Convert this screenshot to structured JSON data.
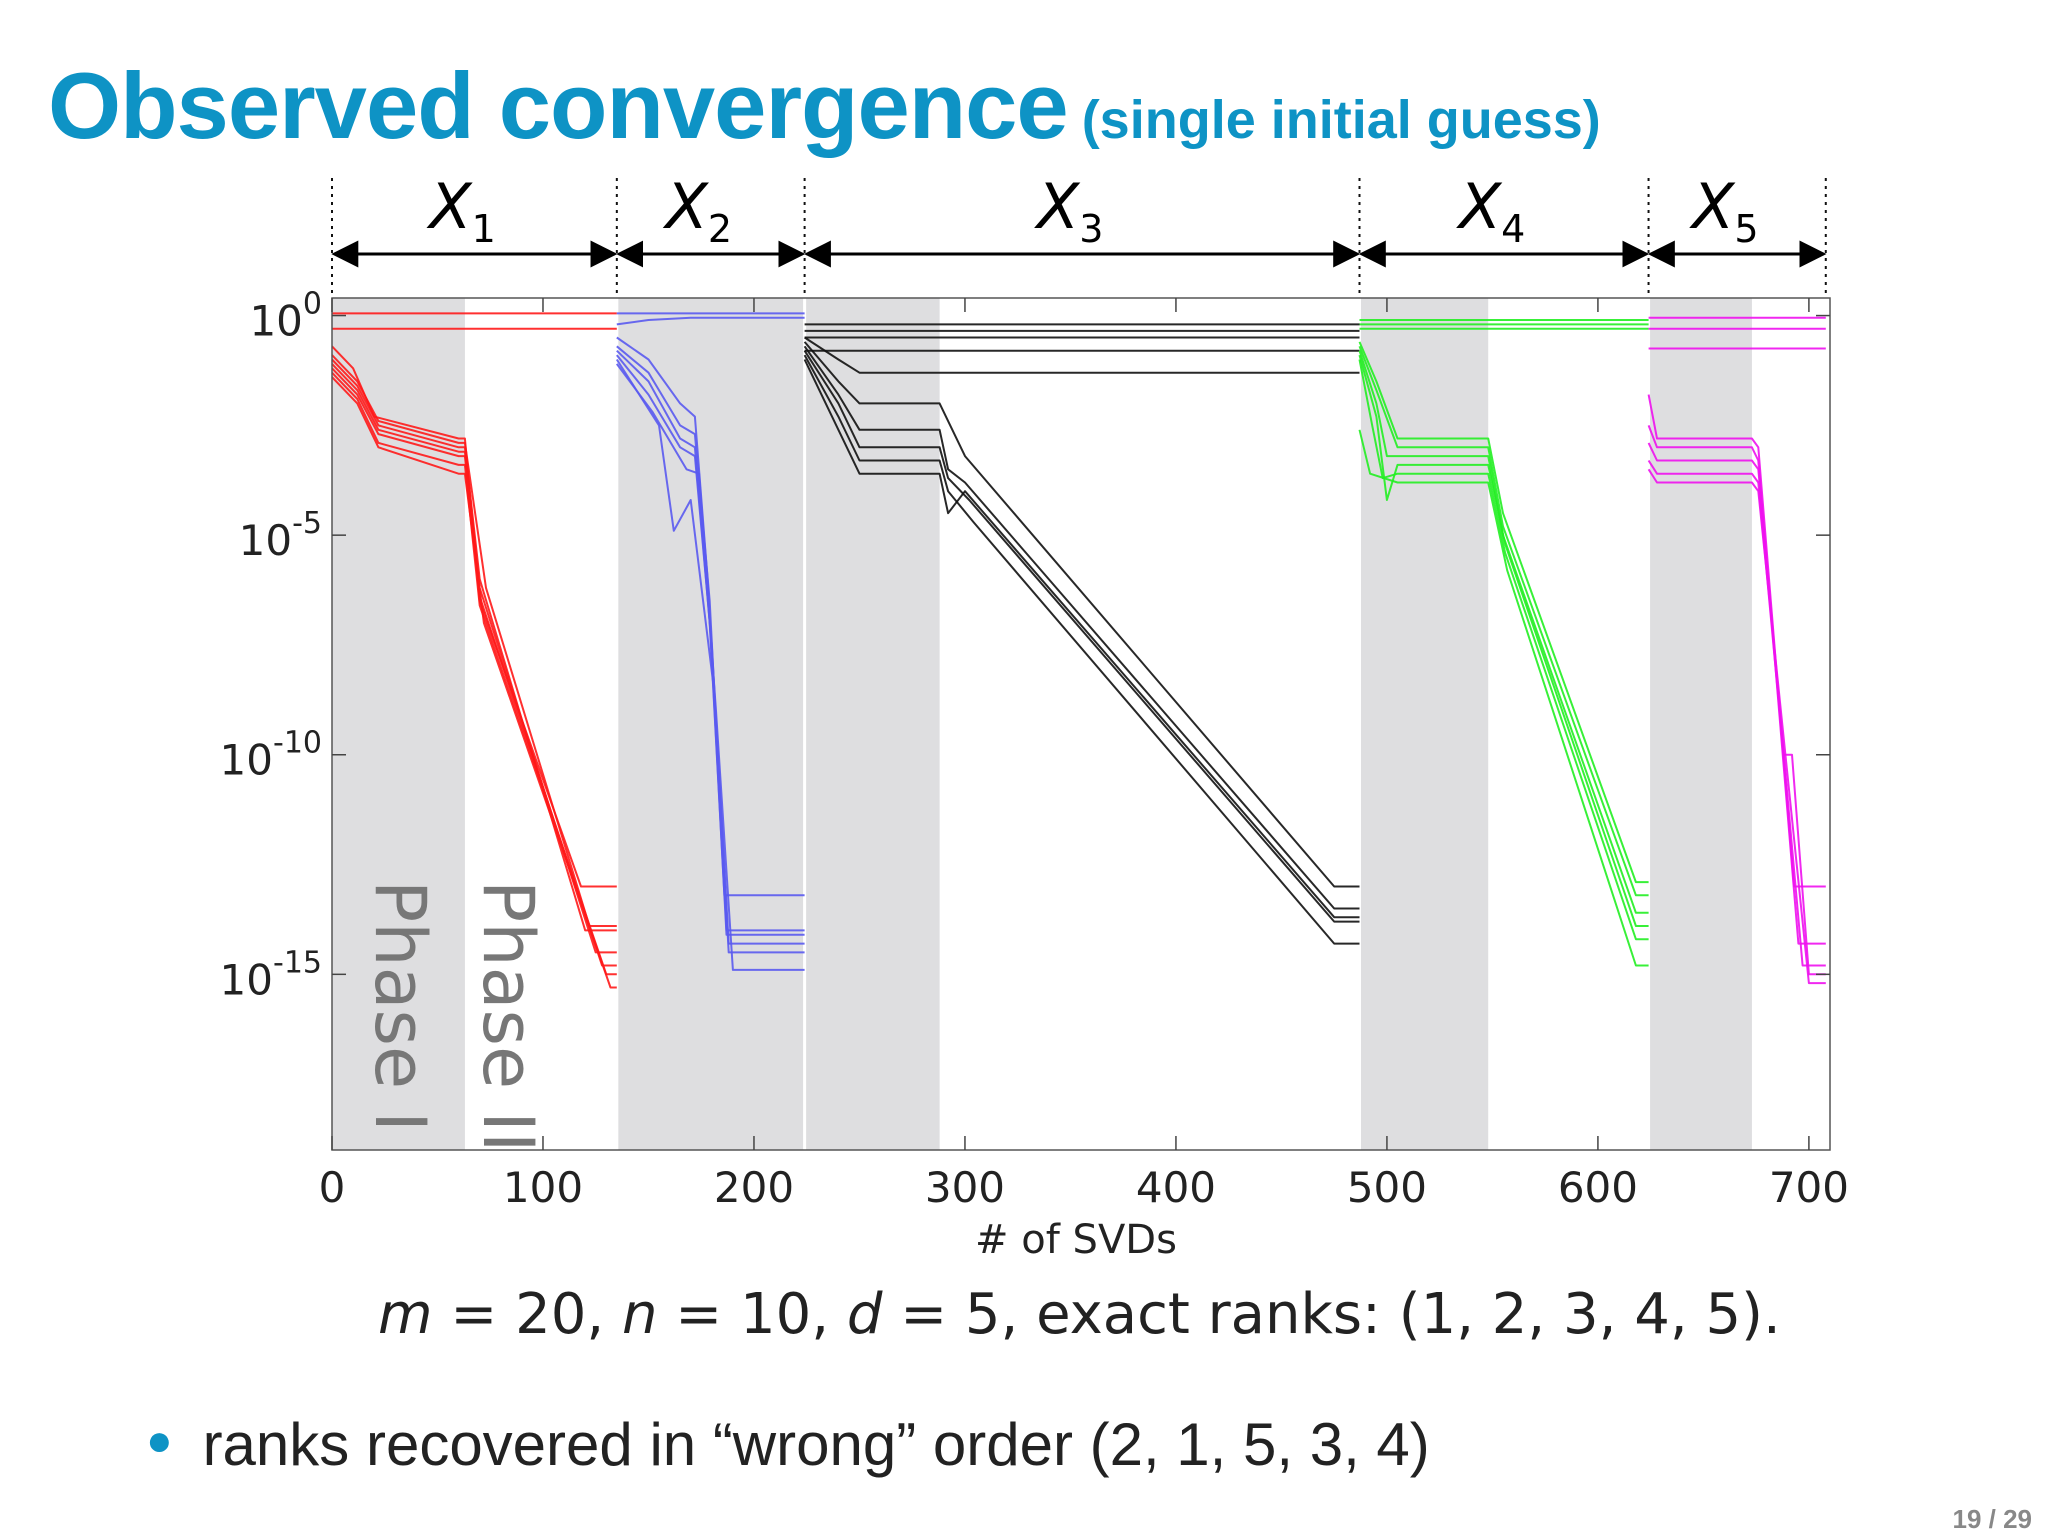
{
  "title": {
    "main": "Observed convergence",
    "sub": "(single initial guess)"
  },
  "caption": {
    "m": "m",
    "eq1": " = 20, ",
    "n": "n",
    "eq2": " = 10, ",
    "d": "d",
    "eq3": " = 5, exact ranks: (1, 2, 3, 4, 5)."
  },
  "bullet": {
    "text": "ranks recovered in “wrong” order (2, 1, 5, 3, 4)"
  },
  "page_number": "19 / 29",
  "chart_data": {
    "type": "line",
    "xlabel": "# of SVDs",
    "ylabel": "",
    "xlim": [
      0,
      710
    ],
    "ylim": [
      -19,
      0.4
    ],
    "ylog": true,
    "grid": false,
    "x_ticks": [
      0,
      100,
      200,
      300,
      400,
      500,
      600,
      700
    ],
    "y_ticks": [
      {
        "value": 0,
        "base": "10",
        "exp": "0"
      },
      {
        "value": -5,
        "base": "10",
        "exp": "-5"
      },
      {
        "value": -10,
        "base": "10",
        "exp": "-10"
      },
      {
        "value": -15,
        "base": "10",
        "exp": "-15"
      }
    ],
    "phase_labels": [
      "Phase I",
      "Phase II"
    ],
    "segments": [
      {
        "label": "X",
        "sub": "1",
        "x": [
          0,
          135
        ],
        "phase1": [
          0,
          63
        ],
        "color": "#ff1a1a"
      },
      {
        "label": "X",
        "sub": "2",
        "x": [
          135,
          224
        ],
        "phase1": [
          135,
          224
        ],
        "color": "#5a5af0"
      },
      {
        "label": "X",
        "sub": "3",
        "x": [
          224,
          487
        ],
        "phase1": [
          224,
          288
        ],
        "color": "#111111"
      },
      {
        "label": "X",
        "sub": "4",
        "x": [
          487,
          624
        ],
        "phase1": [
          487,
          548
        ],
        "color": "#22ee22"
      },
      {
        "label": "X",
        "sub": "5",
        "x": [
          624,
          708
        ],
        "phase1": [
          624,
          673
        ],
        "color": "#ee11ee"
      }
    ],
    "series": [
      {
        "segment": 1,
        "points": [
          [
            0,
            0.05
          ],
          [
            135,
            0.05
          ]
        ]
      },
      {
        "segment": 1,
        "points": [
          [
            0,
            -0.3
          ],
          [
            135,
            -0.3
          ]
        ]
      },
      {
        "segment": 1,
        "points": [
          [
            0,
            -0.7
          ],
          [
            10,
            -1.2
          ],
          [
            20,
            -2.3
          ],
          [
            60,
            -2.8
          ],
          [
            63,
            -2.8
          ],
          [
            70,
            -6.5
          ],
          [
            118,
            -13.0
          ],
          [
            135,
            -13.0
          ]
        ]
      },
      {
        "segment": 1,
        "points": [
          [
            0,
            -0.9
          ],
          [
            12,
            -1.5
          ],
          [
            22,
            -2.4
          ],
          [
            60,
            -2.9
          ],
          [
            63,
            -2.9
          ],
          [
            73,
            -6.2
          ],
          [
            122,
            -13.9
          ],
          [
            135,
            -13.9
          ]
        ]
      },
      {
        "segment": 1,
        "points": [
          [
            0,
            -1.0
          ],
          [
            12,
            -1.6
          ],
          [
            22,
            -2.5
          ],
          [
            60,
            -3.0
          ],
          [
            63,
            -3.0
          ],
          [
            70,
            -6.0
          ],
          [
            120,
            -14.0
          ],
          [
            135,
            -14.0
          ]
        ]
      },
      {
        "segment": 1,
        "points": [
          [
            0,
            -1.1
          ],
          [
            12,
            -1.7
          ],
          [
            22,
            -2.6
          ],
          [
            60,
            -3.1
          ],
          [
            63,
            -3.1
          ],
          [
            70,
            -6.2
          ],
          [
            125,
            -14.5
          ],
          [
            135,
            -14.5
          ]
        ]
      },
      {
        "segment": 1,
        "points": [
          [
            0,
            -1.2
          ],
          [
            12,
            -1.8
          ],
          [
            22,
            -2.7
          ],
          [
            60,
            -3.2
          ],
          [
            63,
            -3.2
          ],
          [
            70,
            -6.4
          ],
          [
            128,
            -14.8
          ],
          [
            135,
            -14.8
          ]
        ]
      },
      {
        "segment": 1,
        "points": [
          [
            0,
            -1.3
          ],
          [
            12,
            -1.9
          ],
          [
            22,
            -2.9
          ],
          [
            60,
            -3.4
          ],
          [
            63,
            -3.4
          ],
          [
            70,
            -6.6
          ],
          [
            130,
            -15.0
          ],
          [
            135,
            -15.0
          ]
        ]
      },
      {
        "segment": 1,
        "points": [
          [
            0,
            -1.4
          ],
          [
            12,
            -2.0
          ],
          [
            22,
            -3.0
          ],
          [
            60,
            -3.6
          ],
          [
            63,
            -3.6
          ],
          [
            72,
            -7.0
          ],
          [
            132,
            -15.3
          ],
          [
            135,
            -15.3
          ]
        ]
      },
      {
        "segment": 2,
        "points": [
          [
            135,
            0.05
          ],
          [
            224,
            0.05
          ]
        ]
      },
      {
        "segment": 2,
        "points": [
          [
            135,
            -0.2
          ],
          [
            150,
            -0.1
          ],
          [
            170,
            -0.05
          ],
          [
            224,
            -0.05
          ]
        ]
      },
      {
        "segment": 2,
        "points": [
          [
            135,
            -0.5
          ],
          [
            150,
            -1.0
          ],
          [
            165,
            -2.0
          ],
          [
            172,
            -2.3
          ],
          [
            178,
            -6.0
          ],
          [
            186,
            -13.2
          ],
          [
            224,
            -13.2
          ]
        ]
      },
      {
        "segment": 2,
        "points": [
          [
            135,
            -0.7
          ],
          [
            150,
            -1.3
          ],
          [
            165,
            -2.5
          ],
          [
            172,
            -2.7
          ],
          [
            179,
            -6.5
          ],
          [
            187,
            -14.0
          ],
          [
            224,
            -14.0
          ]
        ]
      },
      {
        "segment": 2,
        "points": [
          [
            135,
            -0.8
          ],
          [
            150,
            -1.5
          ],
          [
            165,
            -2.8
          ],
          [
            172,
            -3.0
          ],
          [
            179,
            -7.0
          ],
          [
            187,
            -14.1
          ],
          [
            224,
            -14.1
          ]
        ]
      },
      {
        "segment": 2,
        "points": [
          [
            135,
            -0.9
          ],
          [
            150,
            -1.8
          ],
          [
            165,
            -3.0
          ],
          [
            172,
            -3.2
          ],
          [
            180,
            -7.5
          ],
          [
            188,
            -14.3
          ],
          [
            224,
            -14.3
          ]
        ]
      },
      {
        "segment": 2,
        "points": [
          [
            135,
            -1.0
          ],
          [
            155,
            -2.5
          ],
          [
            162,
            -4.9
          ],
          [
            170,
            -4.2
          ],
          [
            181,
            -8.5
          ],
          [
            188,
            -14.5
          ],
          [
            224,
            -14.5
          ]
        ]
      },
      {
        "segment": 2,
        "points": [
          [
            135,
            -1.1
          ],
          [
            152,
            -2.2
          ],
          [
            168,
            -3.5
          ],
          [
            174,
            -3.6
          ],
          [
            182,
            -9.0
          ],
          [
            190,
            -14.9
          ],
          [
            224,
            -14.9
          ]
        ]
      },
      {
        "segment": 3,
        "points": [
          [
            224,
            -0.2
          ],
          [
            487,
            -0.2
          ]
        ]
      },
      {
        "segment": 3,
        "points": [
          [
            224,
            -0.35
          ],
          [
            487,
            -0.35
          ]
        ]
      },
      {
        "segment": 3,
        "points": [
          [
            224,
            -0.5
          ],
          [
            487,
            -0.5
          ]
        ]
      },
      {
        "segment": 3,
        "points": [
          [
            224,
            -0.8
          ],
          [
            487,
            -0.8
          ]
        ]
      },
      {
        "segment": 3,
        "points": [
          [
            224,
            -0.5
          ],
          [
            240,
            -1.0
          ],
          [
            250,
            -1.3
          ],
          [
            487,
            -1.3
          ]
        ]
      },
      {
        "segment": 3,
        "points": [
          [
            224,
            -0.6
          ],
          [
            240,
            -1.5
          ],
          [
            250,
            -2.0
          ],
          [
            288,
            -2.0
          ],
          [
            300,
            -3.2
          ],
          [
            475,
            -13.0
          ],
          [
            487,
            -13.0
          ]
        ]
      },
      {
        "segment": 3,
        "points": [
          [
            224,
            -0.7
          ],
          [
            240,
            -1.8
          ],
          [
            250,
            -2.6
          ],
          [
            288,
            -2.6
          ],
          [
            292,
            -3.5
          ],
          [
            300,
            -3.8
          ],
          [
            475,
            -13.5
          ],
          [
            487,
            -13.5
          ]
        ]
      },
      {
        "segment": 3,
        "points": [
          [
            224,
            -0.8
          ],
          [
            240,
            -2.0
          ],
          [
            250,
            -3.0
          ],
          [
            288,
            -3.0
          ],
          [
            292,
            -3.7
          ],
          [
            302,
            -4.2
          ],
          [
            475,
            -13.8
          ],
          [
            487,
            -13.8
          ]
        ]
      },
      {
        "segment": 3,
        "points": [
          [
            224,
            -0.9
          ],
          [
            240,
            -2.3
          ],
          [
            250,
            -3.3
          ],
          [
            288,
            -3.3
          ],
          [
            292,
            -4.0
          ],
          [
            304,
            -4.7
          ],
          [
            475,
            -14.3
          ],
          [
            487,
            -14.3
          ]
        ]
      },
      {
        "segment": 3,
        "points": [
          [
            224,
            -1.0
          ],
          [
            240,
            -2.6
          ],
          [
            250,
            -3.6
          ],
          [
            288,
            -3.6
          ],
          [
            292,
            -4.5
          ],
          [
            300,
            -4.0
          ],
          [
            475,
            -13.7
          ],
          [
            487,
            -13.7
          ]
        ]
      },
      {
        "segment": 4,
        "points": [
          [
            487,
            -0.1
          ],
          [
            624,
            -0.1
          ]
        ]
      },
      {
        "segment": 4,
        "points": [
          [
            487,
            -0.2
          ],
          [
            624,
            -0.2
          ]
        ]
      },
      {
        "segment": 4,
        "points": [
          [
            487,
            -0.3
          ],
          [
            624,
            -0.3
          ]
        ]
      },
      {
        "segment": 4,
        "points": [
          [
            487,
            -0.6
          ],
          [
            495,
            -1.5
          ],
          [
            505,
            -2.8
          ],
          [
            515,
            -2.8
          ],
          [
            548,
            -2.8
          ],
          [
            555,
            -4.5
          ],
          [
            618,
            -12.9
          ],
          [
            624,
            -12.9
          ]
        ]
      },
      {
        "segment": 4,
        "points": [
          [
            487,
            -0.7
          ],
          [
            495,
            -1.7
          ],
          [
            505,
            -3.0
          ],
          [
            548,
            -3.0
          ],
          [
            555,
            -4.8
          ],
          [
            618,
            -13.2
          ],
          [
            624,
            -13.2
          ]
        ]
      },
      {
        "segment": 4,
        "points": [
          [
            487,
            -0.8
          ],
          [
            495,
            -2.0
          ],
          [
            500,
            -3.2
          ],
          [
            505,
            -3.2
          ],
          [
            548,
            -3.2
          ],
          [
            555,
            -5.0
          ],
          [
            618,
            -13.6
          ],
          [
            624,
            -13.6
          ]
        ]
      },
      {
        "segment": 4,
        "points": [
          [
            487,
            -0.9
          ],
          [
            495,
            -2.3
          ],
          [
            500,
            -4.2
          ],
          [
            505,
            -3.4
          ],
          [
            548,
            -3.4
          ],
          [
            556,
            -5.2
          ],
          [
            618,
            -13.9
          ],
          [
            624,
            -13.9
          ]
        ]
      },
      {
        "segment": 4,
        "points": [
          [
            487,
            -1.0
          ],
          [
            493,
            -2.5
          ],
          [
            498,
            -3.7
          ],
          [
            505,
            -3.6
          ],
          [
            548,
            -3.6
          ],
          [
            556,
            -5.4
          ],
          [
            618,
            -14.2
          ],
          [
            624,
            -14.2
          ]
        ]
      },
      {
        "segment": 4,
        "points": [
          [
            487,
            -2.6
          ],
          [
            492,
            -3.6
          ],
          [
            505,
            -3.8
          ],
          [
            548,
            -3.8
          ],
          [
            557,
            -5.8
          ],
          [
            618,
            -14.8
          ],
          [
            624,
            -14.8
          ]
        ]
      },
      {
        "segment": 5,
        "points": [
          [
            624,
            -0.05
          ],
          [
            708,
            -0.05
          ]
        ]
      },
      {
        "segment": 5,
        "points": [
          [
            624,
            -0.3
          ],
          [
            708,
            -0.3
          ]
        ]
      },
      {
        "segment": 5,
        "points": [
          [
            624,
            -0.75
          ],
          [
            708,
            -0.75
          ]
        ]
      },
      {
        "segment": 5,
        "points": [
          [
            624,
            -1.8
          ],
          [
            628,
            -2.8
          ],
          [
            673,
            -2.8
          ],
          [
            676,
            -3.0
          ],
          [
            693,
            -13.0
          ],
          [
            708,
            -13.0
          ]
        ]
      },
      {
        "segment": 5,
        "points": [
          [
            624,
            -2.5
          ],
          [
            628,
            -3.0
          ],
          [
            673,
            -3.0
          ],
          [
            676,
            -3.3
          ],
          [
            695,
            -14.3
          ],
          [
            708,
            -14.3
          ]
        ]
      },
      {
        "segment": 5,
        "points": [
          [
            624,
            -2.9
          ],
          [
            628,
            -3.3
          ],
          [
            673,
            -3.3
          ],
          [
            676,
            -3.5
          ],
          [
            697,
            -14.8
          ],
          [
            708,
            -14.8
          ]
        ]
      },
      {
        "segment": 5,
        "points": [
          [
            624,
            -3.3
          ],
          [
            628,
            -3.6
          ],
          [
            673,
            -3.6
          ],
          [
            676,
            -3.8
          ],
          [
            688,
            -10.0
          ],
          [
            692,
            -10.0
          ],
          [
            700,
            -15.0
          ],
          [
            708,
            -15.0
          ]
        ]
      },
      {
        "segment": 5,
        "points": [
          [
            624,
            -3.5
          ],
          [
            628,
            -3.8
          ],
          [
            673,
            -3.8
          ],
          [
            676,
            -4.0
          ],
          [
            700,
            -15.2
          ],
          [
            708,
            -15.2
          ]
        ]
      }
    ]
  }
}
